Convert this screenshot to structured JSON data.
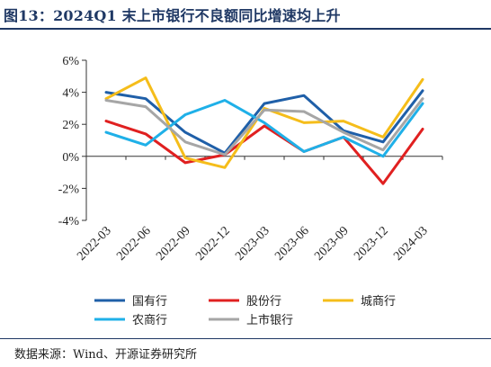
{
  "title": "图13：2024Q1 末上市银行不良额同比增速均上升",
  "source": "数据来源：Wind、开源证券研究所",
  "chart_data": {
    "type": "line",
    "categories": [
      "2022-03",
      "2022-06",
      "2022-09",
      "2022-12",
      "2023-03",
      "2023-06",
      "2023-09",
      "2023-12",
      "2024-03"
    ],
    "ylim": [
      -4,
      6
    ],
    "yticks": [
      -4,
      -2,
      0,
      2,
      4,
      6
    ],
    "ytick_labels": [
      "-4%",
      "-2%",
      "0%",
      "2%",
      "4%",
      "6%"
    ],
    "grid": false,
    "legend_position": "bottom",
    "series": [
      {
        "name": "国有行",
        "color": "#1f5fa8",
        "values": [
          4.0,
          3.6,
          1.5,
          0.2,
          3.3,
          3.8,
          1.6,
          0.9,
          4.1
        ]
      },
      {
        "name": "股份行",
        "color": "#e02020",
        "values": [
          2.2,
          1.4,
          -0.4,
          0.1,
          1.9,
          0.3,
          1.2,
          -1.7,
          1.7
        ]
      },
      {
        "name": "城商行",
        "color": "#f5bd1a",
        "values": [
          3.6,
          4.9,
          -0.1,
          -0.7,
          3.0,
          2.1,
          2.2,
          1.2,
          4.8
        ]
      },
      {
        "name": "农商行",
        "color": "#1fb0e8",
        "values": [
          1.5,
          0.7,
          2.6,
          3.5,
          2.1,
          0.3,
          1.2,
          0.0,
          3.3
        ]
      },
      {
        "name": "上市银行",
        "color": "#a6a6a6",
        "values": [
          3.5,
          3.1,
          0.9,
          0.1,
          2.9,
          2.8,
          1.5,
          0.4,
          3.6
        ]
      }
    ]
  }
}
